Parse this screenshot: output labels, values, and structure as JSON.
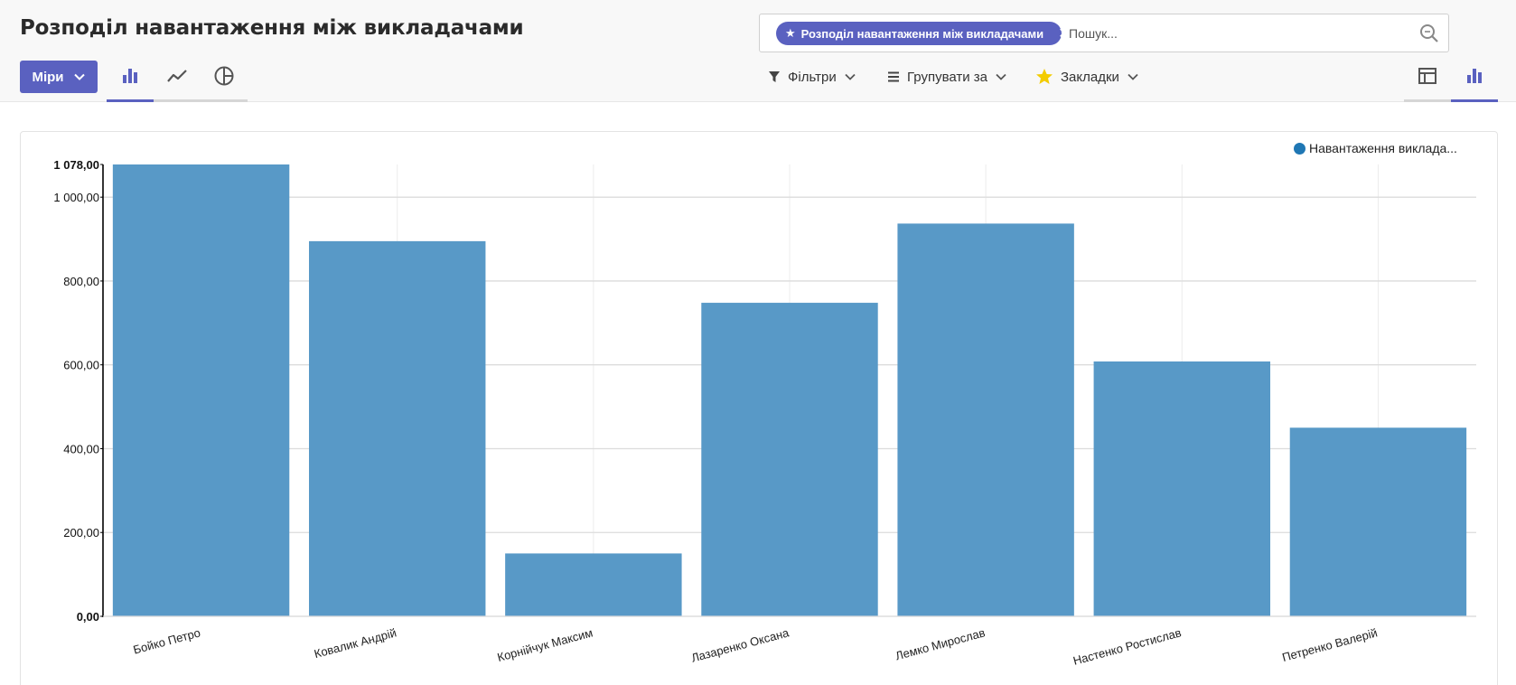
{
  "header": {
    "title": "Розподіл навантаження між викладачами",
    "measures_label": "Міри"
  },
  "search": {
    "facet_label": "Розподіл навантаження між викладачами",
    "placeholder": "Пошук..."
  },
  "menus": {
    "filters": "Фільтри",
    "group_by": "Групувати за",
    "favorites": "Закладки"
  },
  "colors": {
    "accent": "#5a61c0",
    "bar": "#5899c7",
    "legend": "#1f77b4",
    "star": "#f3cc00"
  },
  "icons": {
    "chart_bar": "bar-chart-icon",
    "chart_line": "line-chart-icon",
    "chart_pie": "pie-chart-icon",
    "pivot": "pivot-table-icon",
    "graph": "graph-view-icon"
  },
  "chart_data": {
    "type": "bar",
    "categories": [
      "Бойко Петро",
      "Ковалик Андрій",
      "Корнійчук Максим",
      "Лазаренко Оксана",
      "Лемко Мирослав",
      "Настенко Ростислав",
      "Петренко Валерій"
    ],
    "series": [
      {
        "name": "Навантаження виклада...",
        "values": [
          1078,
          895,
          150,
          748,
          937,
          608,
          450
        ]
      }
    ],
    "yticks": [
      0,
      200,
      400,
      600,
      800,
      1000,
      1078
    ],
    "ytick_labels": [
      "0,00",
      "200,00",
      "400,00",
      "600,00",
      "800,00",
      "1 000,00",
      "1 078,00"
    ],
    "ylim": [
      0,
      1078
    ],
    "grid": true,
    "legend_position": "top-right"
  }
}
